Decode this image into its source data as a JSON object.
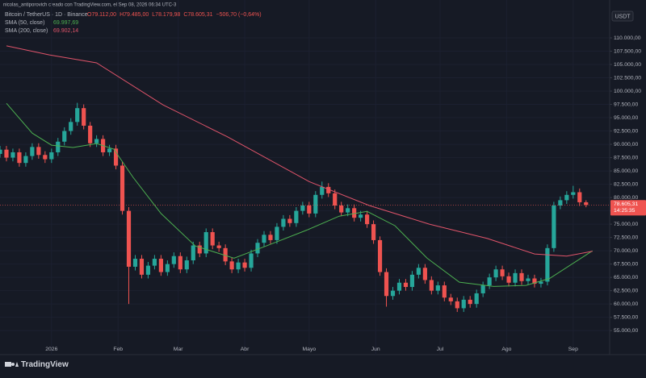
{
  "chart_data": {
    "type": "candlestick",
    "attribution": "nicolas_antiporovich creado con TradingView.com, el Sep 08, 2026 06:34 UTC-3",
    "symbol": "Bitcoin / TetherUS · 1D · Binance",
    "ohlc_labels": [
      "O79.112,00",
      "H79.485,00",
      "L78.179,98",
      "C78.605,31",
      "−506,70 (−0,64%)"
    ],
    "currency": "USDT",
    "brand": "TradingView",
    "last_price_label": "78.605,31",
    "countdown": "14:25:35",
    "up_color": "#26a69a",
    "down_color": "#ef5350",
    "grid": true,
    "xlim": [
      -24,
      260
    ],
    "ylim": [
      52000,
      115300
    ],
    "xticks": [
      {
        "value": 0,
        "label": "2026"
      },
      {
        "value": 31,
        "label": "Feb"
      },
      {
        "value": 59,
        "label": "Mar"
      },
      {
        "value": 90,
        "label": "Abr"
      },
      {
        "value": 120,
        "label": "Mayo"
      },
      {
        "value": 151,
        "label": "Jun"
      },
      {
        "value": 181,
        "label": "Jul"
      },
      {
        "value": 212,
        "label": "Ago"
      },
      {
        "value": 243,
        "label": "Sep"
      }
    ],
    "yticks": [
      {
        "value": 55000,
        "label": "55.000,00"
      },
      {
        "value": 57500,
        "label": "57.500,00"
      },
      {
        "value": 60000,
        "label": "60.000,00"
      },
      {
        "value": 62500,
        "label": "62.500,00"
      },
      {
        "value": 65000,
        "label": "65.000,00"
      },
      {
        "value": 67500,
        "label": "67.500,00"
      },
      {
        "value": 70000,
        "label": "70.000,00"
      },
      {
        "value": 72500,
        "label": "72.500,00"
      },
      {
        "value": 75000,
        "label": "75.000,00"
      },
      {
        "value": 77500,
        "label": "77.500,00"
      },
      {
        "value": 80000,
        "label": "80.000,00"
      },
      {
        "value": 82500,
        "label": "82.500,00"
      },
      {
        "value": 85000,
        "label": "85.000,00"
      },
      {
        "value": 87500,
        "label": "87.500,00"
      },
      {
        "value": 90000,
        "label": "90.000,00"
      },
      {
        "value": 92500,
        "label": "92.500,00"
      },
      {
        "value": 95000,
        "label": "95.000,00"
      },
      {
        "value": 97500,
        "label": "97.500,00"
      },
      {
        "value": 100000,
        "label": "100.000,00"
      },
      {
        "value": 102500,
        "label": "102.500,00"
      },
      {
        "value": 105000,
        "label": "105.000,00"
      },
      {
        "value": 107500,
        "label": "107.500,00"
      },
      {
        "value": 110000,
        "label": "110.000,00"
      }
    ],
    "x": [
      -24,
      -21,
      -18,
      -15,
      -12,
      -9,
      -6,
      -3,
      0,
      3,
      6,
      9,
      12,
      15,
      18,
      21,
      24,
      27,
      30,
      33,
      36,
      39,
      42,
      45,
      48,
      51,
      54,
      57,
      60,
      63,
      66,
      69,
      72,
      75,
      78,
      81,
      84,
      87,
      90,
      93,
      96,
      99,
      102,
      105,
      108,
      111,
      114,
      117,
      120,
      123,
      126,
      129,
      132,
      135,
      138,
      141,
      144,
      147,
      150,
      153,
      156,
      159,
      162,
      165,
      168,
      171,
      174,
      177,
      180,
      183,
      186,
      189,
      192,
      195,
      198,
      201,
      204,
      207,
      210,
      213,
      216,
      219,
      222,
      225,
      228,
      231,
      234,
      237,
      240,
      243,
      246,
      249
    ],
    "open": [
      88200,
      89000,
      87500,
      88500,
      86500,
      87800,
      89500,
      88000,
      87200,
      88500,
      90500,
      92500,
      94200,
      96800,
      93500,
      90200,
      91000,
      88500,
      89200,
      86000,
      77500,
      67000,
      68500,
      65500,
      67200,
      68500,
      66000,
      67500,
      69000,
      66500,
      68200,
      71000,
      69500,
      73500,
      71000,
      70500,
      68000,
      66500,
      67800,
      66800,
      69500,
      71500,
      73000,
      72000,
      74500,
      76000,
      75200,
      77500,
      78500,
      77000,
      80500,
      82000,
      80800,
      78500,
      77200,
      78000,
      76200,
      76800,
      75000,
      72000,
      66000,
      61500,
      62500,
      64000,
      63200,
      65500,
      66800,
      64500,
      62500,
      63500,
      61200,
      60500,
      59200,
      60800,
      60000,
      62000,
      63500,
      65000,
      66500,
      65200,
      64000,
      65800,
      64300,
      64800,
      63800,
      64200,
      70500,
      78500,
      79500,
      80500,
      81000,
      79112
    ],
    "high": [
      89700,
      89700,
      89200,
      89200,
      88500,
      90200,
      90200,
      88700,
      89200,
      91200,
      93200,
      94900,
      97800,
      97500,
      94200,
      91700,
      91700,
      89900,
      89900,
      86700,
      78200,
      69200,
      69200,
      67900,
      69200,
      69200,
      68200,
      69700,
      69700,
      68900,
      71700,
      71700,
      74200,
      74200,
      71700,
      71200,
      68700,
      68500,
      68500,
      70200,
      72200,
      73700,
      73700,
      75200,
      76700,
      76700,
      78200,
      79200,
      79200,
      81200,
      83000,
      82700,
      81500,
      79200,
      78700,
      78700,
      77500,
      77500,
      75700,
      72700,
      66700,
      63200,
      64700,
      64700,
      66200,
      67500,
      67500,
      65200,
      64200,
      64200,
      61900,
      61200,
      61500,
      61500,
      62700,
      64200,
      65700,
      67200,
      67200,
      65900,
      66500,
      66500,
      65500,
      65500,
      64900,
      71200,
      79200,
      80200,
      81200,
      82200,
      81700,
      79485
    ],
    "low": [
      87500,
      86800,
      86800,
      85800,
      85800,
      87100,
      87300,
      86500,
      86500,
      87800,
      89800,
      91800,
      93500,
      92800,
      89500,
      89500,
      87800,
      87800,
      85300,
      76800,
      60000,
      66300,
      64800,
      64800,
      66500,
      65300,
      65300,
      66800,
      65800,
      65800,
      67500,
      68800,
      68800,
      70300,
      69800,
      67300,
      65800,
      65800,
      66100,
      66100,
      68800,
      70800,
      71300,
      71300,
      73800,
      74500,
      74500,
      76800,
      76300,
      76300,
      79800,
      80100,
      77800,
      76500,
      76500,
      75500,
      75500,
      74300,
      71300,
      65300,
      59500,
      60800,
      61800,
      62500,
      62500,
      64800,
      63800,
      61800,
      61800,
      60500,
      59800,
      58500,
      58500,
      59300,
      59300,
      61300,
      62800,
      64300,
      64500,
      63300,
      63300,
      63600,
      63600,
      63100,
      63100,
      63500,
      69800,
      77800,
      78800,
      79800,
      78412,
      78179.98
    ],
    "close": [
      89000,
      87500,
      88500,
      86500,
      87800,
      89500,
      88000,
      87200,
      88500,
      90500,
      92500,
      94200,
      96800,
      93500,
      90200,
      91000,
      88500,
      89200,
      86000,
      77500,
      67000,
      68500,
      65500,
      67200,
      68500,
      66000,
      67500,
      69000,
      66500,
      68200,
      71000,
      69500,
      73500,
      71000,
      70500,
      68000,
      66500,
      67800,
      66800,
      69500,
      71500,
      73000,
      72000,
      74500,
      76000,
      75200,
      77500,
      78500,
      77000,
      80500,
      82000,
      80800,
      78500,
      77200,
      78000,
      76200,
      76800,
      75000,
      72000,
      66000,
      61500,
      62500,
      64000,
      63200,
      65500,
      66800,
      64500,
      62500,
      63500,
      61200,
      60500,
      59200,
      60800,
      60000,
      62000,
      63500,
      65000,
      66500,
      65200,
      64000,
      65800,
      64300,
      64800,
      63800,
      64200,
      70500,
      78500,
      79500,
      80500,
      81000,
      79112,
      78605.31
    ],
    "lines": [
      {
        "name": "SMA (50, close)",
        "last_label": "69.997,69",
        "color": "#4caf50",
        "x": [
          -21,
          -9,
          0,
          10,
          21,
          29,
          38,
          51,
          67,
          85,
          100,
          119,
          134,
          147,
          160,
          175,
          190,
          206,
          221,
          232,
          252
        ],
        "values": [
          97700,
          92100,
          89850,
          89400,
          90150,
          89100,
          83800,
          77000,
          70900,
          68600,
          70900,
          73900,
          76500,
          77400,
          74700,
          68600,
          64100,
          63300,
          63500,
          64800,
          69997.69
        ]
      },
      {
        "name": "SMA (200, close)",
        "last_label": "69.902,14",
        "color": "#e0546a",
        "x": [
          -21,
          -1,
          21,
          52,
          82,
          120,
          148,
          176,
          203,
          225,
          240,
          252
        ],
        "values": [
          108500,
          106800,
          105300,
          97400,
          91400,
          83000,
          78500,
          75000,
          72300,
          69400,
          69000,
          69902.14
        ]
      }
    ]
  }
}
